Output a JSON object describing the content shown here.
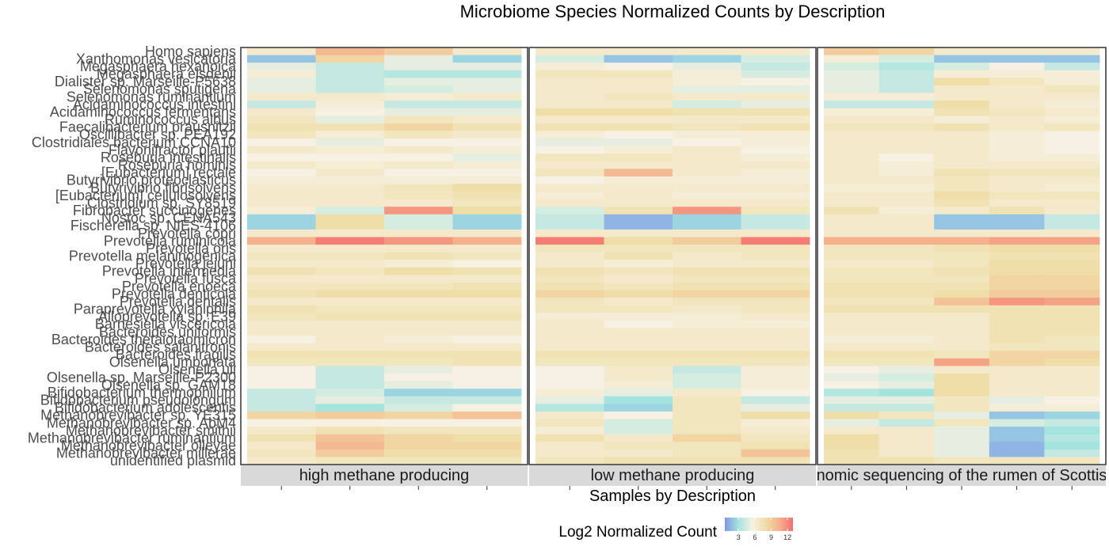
{
  "chart_data": {
    "type": "heatmap",
    "title": "Microbiome Species Normalized Counts by Description",
    "xlabel": "Samples by Description",
    "legend": {
      "title": "Log2 Normalized Count",
      "ticks": [
        "3",
        "6",
        "9",
        "12"
      ],
      "range": [
        0.5,
        13
      ],
      "colors": [
        "#8096e8",
        "#a4e4df",
        "#f6f1e2",
        "#f0dea8",
        "#f5b08c",
        "#f47070"
      ]
    },
    "species": [
      "Homo sapiens",
      "Xanthomonas vesicatoria",
      "Megasphaera hexanoica",
      "Megasphaera elsdenii",
      "Dialister sp. Marseille-P5638",
      "Selenomonas sputigena",
      "Selenomonas ruminantium",
      "Acidaminococcus intestini",
      "Acidaminococcus fermentans",
      "Ruminococcus albus",
      "Faecalibacterium prausnitzii",
      "Oscillibacter sp. PEA192",
      "Clostridiales bacterium CCNA10",
      "Flavonifractor plautii",
      "Roseburia intestinalis",
      "Roseburia hominis",
      "[Eubacterium] rectale",
      "Butyrivibrio proteoclasticus",
      "Butyrivibrio fibrisolvens",
      "[Eubacterium] cellulosolvens",
      "Clostridium sp. SY8519",
      "Fibrobacter succinogenes",
      "Nostoc sp. CENA543",
      "Fischerella sp. NIES-4106",
      "Prevotella copri",
      "Prevotella ruminicola",
      "Prevotella oris",
      "Prevotella melaninogenica",
      "Prevotella jejuni",
      "Prevotella intermedia",
      "Prevotella fusca",
      "Prevotella enoeca",
      "Prevotella denticola",
      "Prevotella dentalis",
      "Paraprevotella xylaniphila",
      "Alloprevotella sp. E39",
      "Barnesiella viscericola",
      "Bacteroides uniformis",
      "Bacteroides thetaiotaomicron",
      "Bacteroides salanitronis",
      "Bacteroides fragilis",
      "Olsenella umbonata",
      "Olsenella uli",
      "Olsenella sp. Marseille-P2300",
      "Olsenella sp. GAM18",
      "Bifidobacterium thermophilum",
      "Bifidobacterium pseudolongum",
      "Bifidobacterium adolescentis",
      "Methanobrevibacter sp. YE315",
      "Methanobrevibacter sp. AbM4",
      "Methanobrevibacter smithii",
      "Methanobrevibacter ruminantium",
      "Methanobrevibacter olleyae",
      "Methanobrevibacter millerae",
      "unidentified plasmid"
    ],
    "panels": [
      {
        "label": "high methane producing",
        "samples": 4,
        "values": [
          [
            6.5,
            10,
            9,
            6.5
          ],
          [
            2,
            8.5,
            5,
            2.5
          ],
          [
            5,
            4,
            5,
            5
          ],
          [
            6,
            4,
            3.5,
            3.5
          ],
          [
            5,
            4,
            5,
            5
          ],
          [
            5,
            4,
            4.5,
            5
          ],
          [
            6.5,
            6.5,
            6,
            6.5
          ],
          [
            4,
            6,
            4,
            4
          ],
          [
            6.5,
            5.5,
            5,
            5
          ],
          [
            7,
            5,
            7,
            6.5
          ],
          [
            7.5,
            7.5,
            8.5,
            7.5
          ],
          [
            7,
            6,
            7,
            6.5
          ],
          [
            5.5,
            5,
            5.5,
            5.5
          ],
          [
            6.5,
            6,
            6.5,
            6
          ],
          [
            5.5,
            5.5,
            5.5,
            5
          ],
          [
            6.5,
            6,
            6.5,
            6
          ],
          [
            5.5,
            6.5,
            5.5,
            5.5
          ],
          [
            6,
            6,
            6,
            6
          ],
          [
            6.5,
            6.5,
            7,
            8
          ],
          [
            6.5,
            6.5,
            7,
            7.5
          ],
          [
            6.5,
            6.5,
            6.5,
            7
          ],
          [
            6,
            4.5,
            11.5,
            8
          ],
          [
            2.5,
            8,
            4.5,
            2.5
          ],
          [
            2.5,
            8,
            4.5,
            2.5
          ],
          [
            6.5,
            6.5,
            6.5,
            6.5
          ],
          [
            10.5,
            12.5,
            11.5,
            10.5
          ],
          [
            6.5,
            6.5,
            6.5,
            6.5
          ],
          [
            7,
            7,
            7.5,
            7
          ],
          [
            6.5,
            6.5,
            6,
            5.5
          ],
          [
            7.5,
            7,
            8,
            7.5
          ],
          [
            6.5,
            6.5,
            6.5,
            6.5
          ],
          [
            7,
            7,
            7,
            7.5
          ],
          [
            7.5,
            8,
            8,
            8
          ],
          [
            6.5,
            6.5,
            6.5,
            6.5
          ],
          [
            7.5,
            7,
            7,
            7
          ],
          [
            7,
            7.5,
            7.5,
            7.5
          ],
          [
            6.5,
            6.5,
            6.5,
            6.5
          ],
          [
            6.5,
            6.5,
            6.5,
            6.5
          ],
          [
            5.5,
            6.5,
            6,
            5.5
          ],
          [
            6.5,
            6.5,
            6.5,
            6.5
          ],
          [
            7.5,
            7.5,
            7.5,
            7.5
          ],
          [
            7,
            7,
            7,
            7.5
          ],
          [
            5.5,
            4,
            5,
            5.5
          ],
          [
            5.5,
            4,
            5.5,
            5.5
          ],
          [
            5.5,
            4,
            5,
            5.5
          ],
          [
            4,
            4.5,
            2.5,
            2.5
          ],
          [
            4,
            5,
            4,
            4
          ],
          [
            4,
            3,
            4.5,
            5.5
          ],
          [
            8.5,
            9,
            8.5,
            9.5
          ],
          [
            5.5,
            5.5,
            5.5,
            5.5
          ],
          [
            6.5,
            7.5,
            7,
            7
          ],
          [
            7.5,
            9.5,
            8.5,
            8
          ],
          [
            6.5,
            10,
            8.5,
            8.5
          ],
          [
            7,
            9,
            8,
            8
          ],
          [
            6.5,
            7,
            7,
            7
          ]
        ]
      },
      {
        "label": "low methane producing",
        "samples": 4,
        "values": [
          [
            6.5,
            6.5,
            6.5,
            6.5
          ],
          [
            4.5,
            2,
            2.5,
            4.5
          ],
          [
            6,
            5.5,
            5,
            4
          ],
          [
            7,
            7,
            6,
            4.5
          ],
          [
            6.5,
            6.5,
            6,
            5.5
          ],
          [
            6.5,
            6.5,
            5,
            5
          ],
          [
            6.5,
            7,
            6.5,
            6.5
          ],
          [
            6.5,
            6.5,
            4.5,
            5
          ],
          [
            8,
            8,
            7.5,
            7.5
          ],
          [
            6.5,
            6.5,
            6.5,
            6.5
          ],
          [
            7.5,
            7.5,
            7,
            7.5
          ],
          [
            6,
            5.5,
            6,
            6
          ],
          [
            5,
            5,
            5.5,
            6
          ],
          [
            5.5,
            6,
            6.5,
            5.5
          ],
          [
            7,
            7,
            6.5,
            6
          ],
          [
            6.5,
            6.5,
            6.5,
            6.5
          ],
          [
            7,
            10,
            6.5,
            6
          ],
          [
            5.5,
            6,
            6,
            6
          ],
          [
            6.5,
            6.5,
            6.5,
            6.5
          ],
          [
            6,
            6.5,
            6,
            6
          ],
          [
            6.5,
            6.5,
            6.5,
            6.5
          ],
          [
            4.5,
            7.5,
            11.5,
            7
          ],
          [
            4,
            1.5,
            2.5,
            4
          ],
          [
            4,
            1.5,
            2.5,
            4
          ],
          [
            6.5,
            6.5,
            6.5,
            6.5
          ],
          [
            12.5,
            8,
            9,
            12.5
          ],
          [
            7,
            7,
            7,
            7
          ],
          [
            6.5,
            7.5,
            6.5,
            7
          ],
          [
            6.5,
            6,
            6.5,
            6.5
          ],
          [
            7.5,
            7,
            7.5,
            7.5
          ],
          [
            7,
            6.5,
            7,
            7
          ],
          [
            7.5,
            7,
            7.5,
            7.5
          ],
          [
            8.5,
            8,
            8.5,
            8.5
          ],
          [
            7,
            6.5,
            7,
            7
          ],
          [
            7,
            7,
            6.5,
            7
          ],
          [
            6,
            6,
            6,
            6.5
          ],
          [
            6.5,
            5.5,
            6,
            6
          ],
          [
            6.5,
            6.5,
            6.5,
            6.5
          ],
          [
            6.5,
            6.5,
            6.5,
            6.5
          ],
          [
            6.5,
            6.5,
            6.5,
            6.5
          ],
          [
            7.5,
            7.5,
            7.5,
            7.5
          ],
          [
            7,
            7,
            7,
            7
          ],
          [
            5.5,
            6.5,
            4,
            6
          ],
          [
            5.5,
            6.5,
            4.5,
            6
          ],
          [
            5.5,
            6,
            4.5,
            6
          ],
          [
            6,
            5,
            6.5,
            5.5
          ],
          [
            5,
            3,
            7,
            4
          ],
          [
            3.5,
            2.5,
            7,
            5
          ],
          [
            6.5,
            5.5,
            7,
            8
          ],
          [
            7,
            4.5,
            7,
            6
          ],
          [
            6,
            4.5,
            7,
            6.5
          ],
          [
            7.5,
            6.5,
            8.5,
            7
          ],
          [
            6.5,
            7,
            7,
            7.5
          ],
          [
            6.5,
            6.5,
            7,
            9.5
          ],
          [
            7,
            7.5,
            7.5,
            7.5
          ]
        ]
      },
      {
        "label": "nomic sequencing of the rumen of Scottis",
        "samples": 5,
        "values": [
          [
            9,
            8.5,
            6.5,
            6.5,
            6.5
          ],
          [
            6,
            4.5,
            2,
            2,
            2
          ],
          [
            4.5,
            3.5,
            4.5,
            5.5,
            4
          ],
          [
            5,
            4,
            6,
            6,
            6
          ],
          [
            5,
            4,
            8,
            7,
            6
          ],
          [
            5,
            4,
            6.5,
            6.5,
            7
          ],
          [
            6,
            6,
            6.5,
            6.5,
            6.5
          ],
          [
            4,
            4,
            8,
            6.5,
            6
          ],
          [
            6,
            6,
            7.5,
            7,
            6.5
          ],
          [
            6.5,
            6.5,
            6,
            6.5,
            6
          ],
          [
            7,
            7,
            7.5,
            6.5,
            7
          ],
          [
            6.5,
            6.5,
            6.5,
            6,
            5.5
          ],
          [
            6.5,
            6.5,
            6.5,
            6,
            5.5
          ],
          [
            6.5,
            6.5,
            6.5,
            6,
            5.5
          ],
          [
            6.5,
            5.5,
            6.5,
            6,
            6
          ],
          [
            6.5,
            6,
            6.5,
            6.5,
            6.5
          ],
          [
            6.5,
            6,
            7.5,
            7,
            7
          ],
          [
            6.5,
            6.5,
            7,
            6.5,
            6.5
          ],
          [
            6,
            6,
            7,
            6.5,
            6
          ],
          [
            6.5,
            6.5,
            8,
            7,
            7
          ],
          [
            6.5,
            6.5,
            7.5,
            6.5,
            6.5
          ],
          [
            7.5,
            6,
            6.5,
            7.5,
            6.5
          ],
          [
            6.5,
            6.5,
            2,
            2,
            4
          ],
          [
            6.5,
            6.5,
            2,
            2,
            4
          ],
          [
            6.5,
            6.5,
            6.5,
            6.5,
            6.5
          ],
          [
            10.5,
            10.5,
            10.5,
            11,
            11
          ],
          [
            7,
            7,
            7.5,
            8,
            8
          ],
          [
            7,
            7,
            7,
            7.5,
            7.5
          ],
          [
            6.5,
            6.5,
            7,
            8,
            8
          ],
          [
            7,
            7,
            7.5,
            8,
            8
          ],
          [
            7,
            7,
            7,
            8.5,
            8.5
          ],
          [
            7.5,
            7.5,
            7.5,
            8.5,
            8.5
          ],
          [
            7.5,
            7.5,
            8,
            9,
            9
          ],
          [
            7,
            7,
            9.5,
            11.5,
            11
          ],
          [
            7.5,
            7.5,
            7.5,
            7.5,
            7.5
          ],
          [
            6.5,
            6.5,
            6.5,
            7.5,
            7.5
          ],
          [
            6.5,
            6.5,
            6.5,
            7.5,
            7.5
          ],
          [
            6.5,
            6.5,
            6.5,
            7.5,
            7.5
          ],
          [
            6,
            6,
            6.5,
            7.5,
            7
          ],
          [
            6.5,
            6.5,
            6.5,
            7,
            7
          ],
          [
            7.5,
            7.5,
            7,
            8.5,
            8.5
          ],
          [
            7,
            7,
            11,
            8.5,
            8
          ],
          [
            5.5,
            5,
            6.5,
            6.5,
            6.5
          ],
          [
            5,
            4.5,
            8,
            6.5,
            6.5
          ],
          [
            5.5,
            5,
            8,
            6.5,
            6.5
          ],
          [
            3.5,
            3,
            8,
            6.5,
            6.5
          ],
          [
            5,
            5,
            7,
            5,
            5.5
          ],
          [
            4,
            4,
            7,
            6,
            6
          ],
          [
            8,
            7,
            5,
            2,
            2.5
          ],
          [
            5,
            4,
            7,
            4.5,
            4
          ],
          [
            6.5,
            6.5,
            5,
            2,
            3
          ],
          [
            8,
            6.5,
            5,
            2,
            3.5
          ],
          [
            8,
            6.5,
            5,
            1.5,
            3
          ],
          [
            7.5,
            6.5,
            5,
            1.5,
            4
          ],
          [
            7.5,
            7.5,
            7,
            7,
            7
          ]
        ]
      }
    ]
  }
}
